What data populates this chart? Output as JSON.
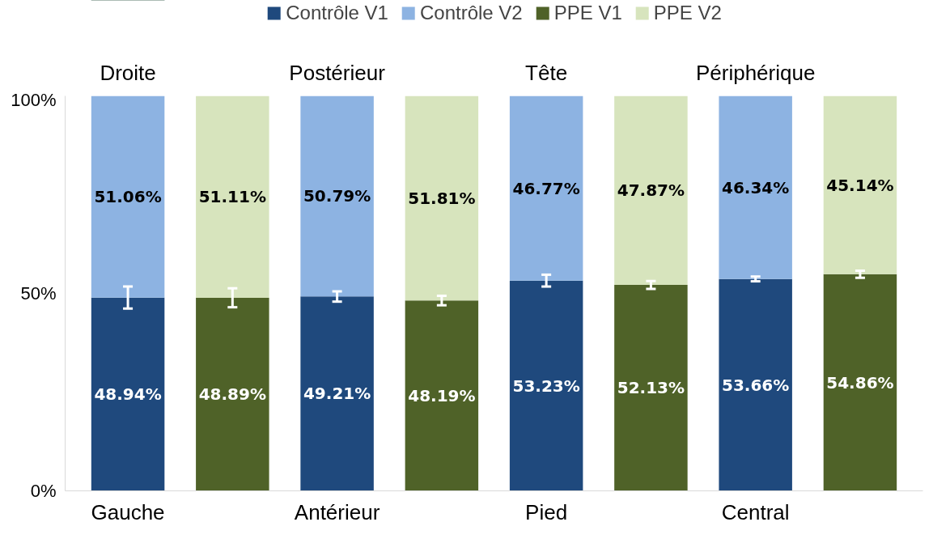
{
  "chart_data": {
    "type": "bar",
    "stacked": true,
    "categories": [
      "Gauche",
      null,
      "Antérieur",
      null,
      "Pied",
      null,
      "Central",
      null
    ],
    "annotations": [
      "Droite",
      "Postérieur",
      "Tête",
      "Périphérique"
    ],
    "ylim": [
      0,
      100
    ],
    "yticks": [
      {
        "value": 0,
        "label": "0%"
      },
      {
        "value": 50,
        "label": "50%"
      },
      {
        "value": 100,
        "label": "100%"
      }
    ],
    "legend": "top",
    "series": [
      {
        "name": "Contrôle V1",
        "color": "#1f497d",
        "values": [
          48.94,
          null,
          49.21,
          null,
          53.23,
          null,
          53.66,
          null
        ],
        "value_labels": [
          "48.94%",
          null,
          "49.21%",
          null,
          "53.23%",
          null,
          "53.66%",
          null
        ],
        "errors": [
          2.8,
          null,
          1.3,
          null,
          1.5,
          null,
          0.6,
          null
        ]
      },
      {
        "name": "Contrôle V2",
        "color": "#8db3e2",
        "values": [
          51.06,
          null,
          50.79,
          null,
          46.77,
          null,
          46.34,
          null
        ],
        "value_labels": [
          "51.06%",
          null,
          "50.79%",
          null,
          "46.77%",
          null,
          "46.34%",
          null
        ]
      },
      {
        "name": "PPE V1",
        "color": "#4f6228",
        "values": [
          null,
          48.89,
          null,
          48.19,
          null,
          52.13,
          null,
          54.86
        ],
        "value_labels": [
          null,
          "48.89%",
          null,
          "48.19%",
          null,
          "52.13%",
          null,
          "54.86%"
        ],
        "errors": [
          null,
          2.4,
          null,
          1.2,
          null,
          1.0,
          null,
          0.9
        ]
      },
      {
        "name": "PPE V2",
        "color": "#d7e4bd",
        "values": [
          null,
          51.11,
          null,
          51.81,
          null,
          47.87,
          null,
          45.14
        ],
        "value_labels": [
          null,
          "51.11%",
          null,
          "51.81%",
          null,
          "47.87%",
          null,
          "45.14%"
        ]
      }
    ]
  }
}
